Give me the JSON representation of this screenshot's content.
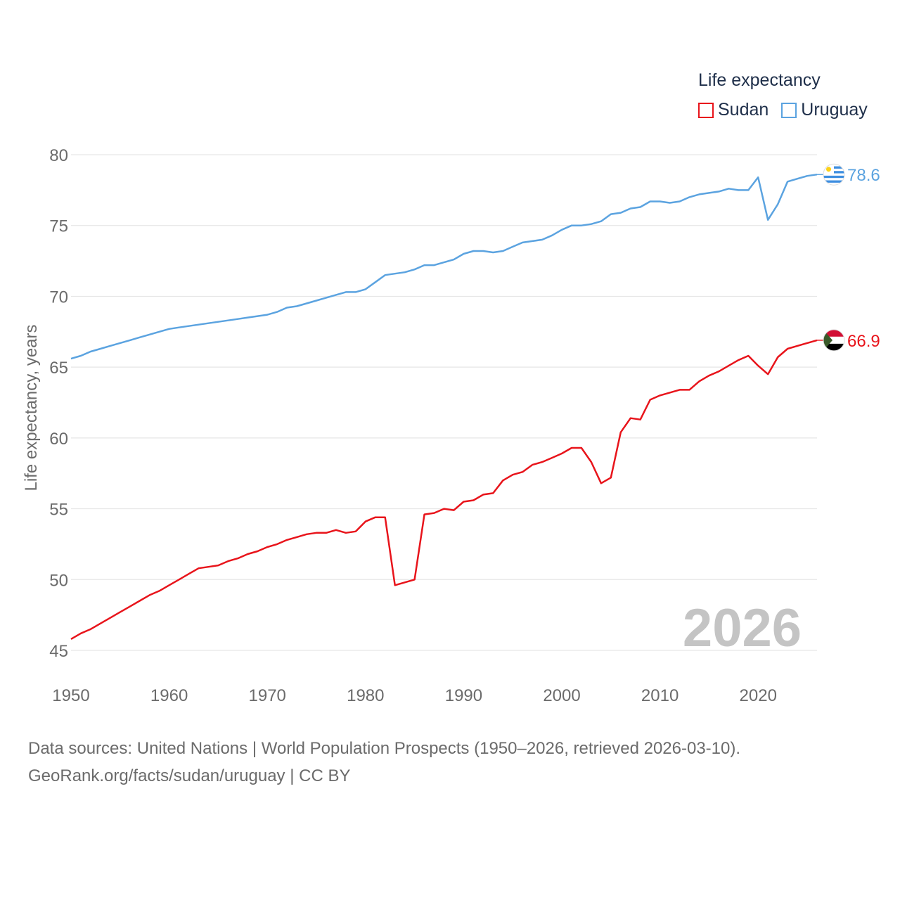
{
  "chart_data": {
    "type": "line",
    "title": "",
    "xlabel": "",
    "ylabel": "Life expectancy, years",
    "xlim": [
      1950,
      2026
    ],
    "ylim": [
      45,
      80
    ],
    "x_ticks": [
      1950,
      1960,
      1970,
      1980,
      1990,
      2000,
      2010,
      2020
    ],
    "y_ticks": [
      45,
      50,
      55,
      60,
      65,
      70,
      75,
      80
    ],
    "grid": true,
    "legend_title": "Life expectancy",
    "legend_placement": "top-right",
    "watermark_year": "2026",
    "x": [
      1950,
      1951,
      1952,
      1953,
      1954,
      1955,
      1956,
      1957,
      1958,
      1959,
      1960,
      1961,
      1962,
      1963,
      1964,
      1965,
      1966,
      1967,
      1968,
      1969,
      1970,
      1971,
      1972,
      1973,
      1974,
      1975,
      1976,
      1977,
      1978,
      1979,
      1980,
      1981,
      1982,
      1983,
      1984,
      1985,
      1986,
      1987,
      1988,
      1989,
      1990,
      1991,
      1992,
      1993,
      1994,
      1995,
      1996,
      1997,
      1998,
      1999,
      2000,
      2001,
      2002,
      2003,
      2004,
      2005,
      2006,
      2007,
      2008,
      2009,
      2010,
      2011,
      2012,
      2013,
      2014,
      2015,
      2016,
      2017,
      2018,
      2019,
      2020,
      2021,
      2022,
      2023,
      2024,
      2025,
      2026
    ],
    "series": [
      {
        "name": "Sudan",
        "color": "#e8141b",
        "end_label": "66.9",
        "values": [
          45.8,
          46.2,
          46.5,
          46.9,
          47.3,
          47.7,
          48.1,
          48.5,
          48.9,
          49.2,
          49.6,
          50.0,
          50.4,
          50.8,
          50.9,
          51.0,
          51.3,
          51.5,
          51.8,
          52.0,
          52.3,
          52.5,
          52.8,
          53.0,
          53.2,
          53.3,
          53.3,
          53.5,
          53.3,
          53.4,
          54.1,
          54.4,
          54.4,
          49.6,
          49.8,
          50.0,
          54.6,
          54.7,
          55.0,
          54.9,
          55.5,
          55.6,
          56.0,
          56.1,
          57.0,
          57.4,
          57.6,
          58.1,
          58.3,
          58.6,
          58.9,
          59.3,
          59.3,
          58.3,
          56.8,
          57.2,
          60.4,
          61.4,
          61.3,
          62.7,
          63.0,
          63.2,
          63.4,
          63.4,
          64.0,
          64.4,
          64.7,
          65.1,
          65.5,
          65.8,
          65.1,
          64.5,
          65.7,
          66.3,
          66.5,
          66.7,
          66.9
        ]
      },
      {
        "name": "Uruguay",
        "color": "#5ba3e0",
        "end_label": "78.6",
        "values": [
          65.6,
          65.8,
          66.1,
          66.3,
          66.5,
          66.7,
          66.9,
          67.1,
          67.3,
          67.5,
          67.7,
          67.8,
          67.9,
          68.0,
          68.1,
          68.2,
          68.3,
          68.4,
          68.5,
          68.6,
          68.7,
          68.9,
          69.2,
          69.3,
          69.5,
          69.7,
          69.9,
          70.1,
          70.3,
          70.3,
          70.5,
          71.0,
          71.5,
          71.6,
          71.7,
          71.9,
          72.2,
          72.2,
          72.4,
          72.6,
          73.0,
          73.2,
          73.2,
          73.1,
          73.2,
          73.5,
          73.8,
          73.9,
          74.0,
          74.3,
          74.7,
          75.0,
          75.0,
          75.1,
          75.3,
          75.8,
          75.9,
          76.2,
          76.3,
          76.7,
          76.7,
          76.6,
          76.7,
          77.0,
          77.2,
          77.3,
          77.4,
          77.6,
          77.5,
          77.5,
          78.4,
          75.4,
          76.5,
          78.1,
          78.3,
          78.5,
          78.6
        ]
      }
    ],
    "y_tick_labels": [
      "45",
      "50",
      "55",
      "60",
      "65",
      "70",
      "75",
      "80"
    ],
    "x_tick_labels": [
      "1950",
      "1960",
      "1970",
      "1980",
      "1990",
      "2000",
      "2010",
      "2020"
    ]
  },
  "footer": {
    "source_line": "Data sources: United Nations | World Population Prospects (1950–2026, retrieved 2026-03-10).",
    "url_line": "GeoRank.org/facts/sudan/uruguay | CC BY"
  },
  "colors": {
    "grid": "#e6e6e6",
    "axis_text": "#6b6b6b",
    "flag_sudan_red": "#d21034",
    "flag_sudan_green": "#3a5a2a",
    "flag_uruguay_blue": "#3f8fe0",
    "flag_uruguay_sun": "#fcd116"
  }
}
